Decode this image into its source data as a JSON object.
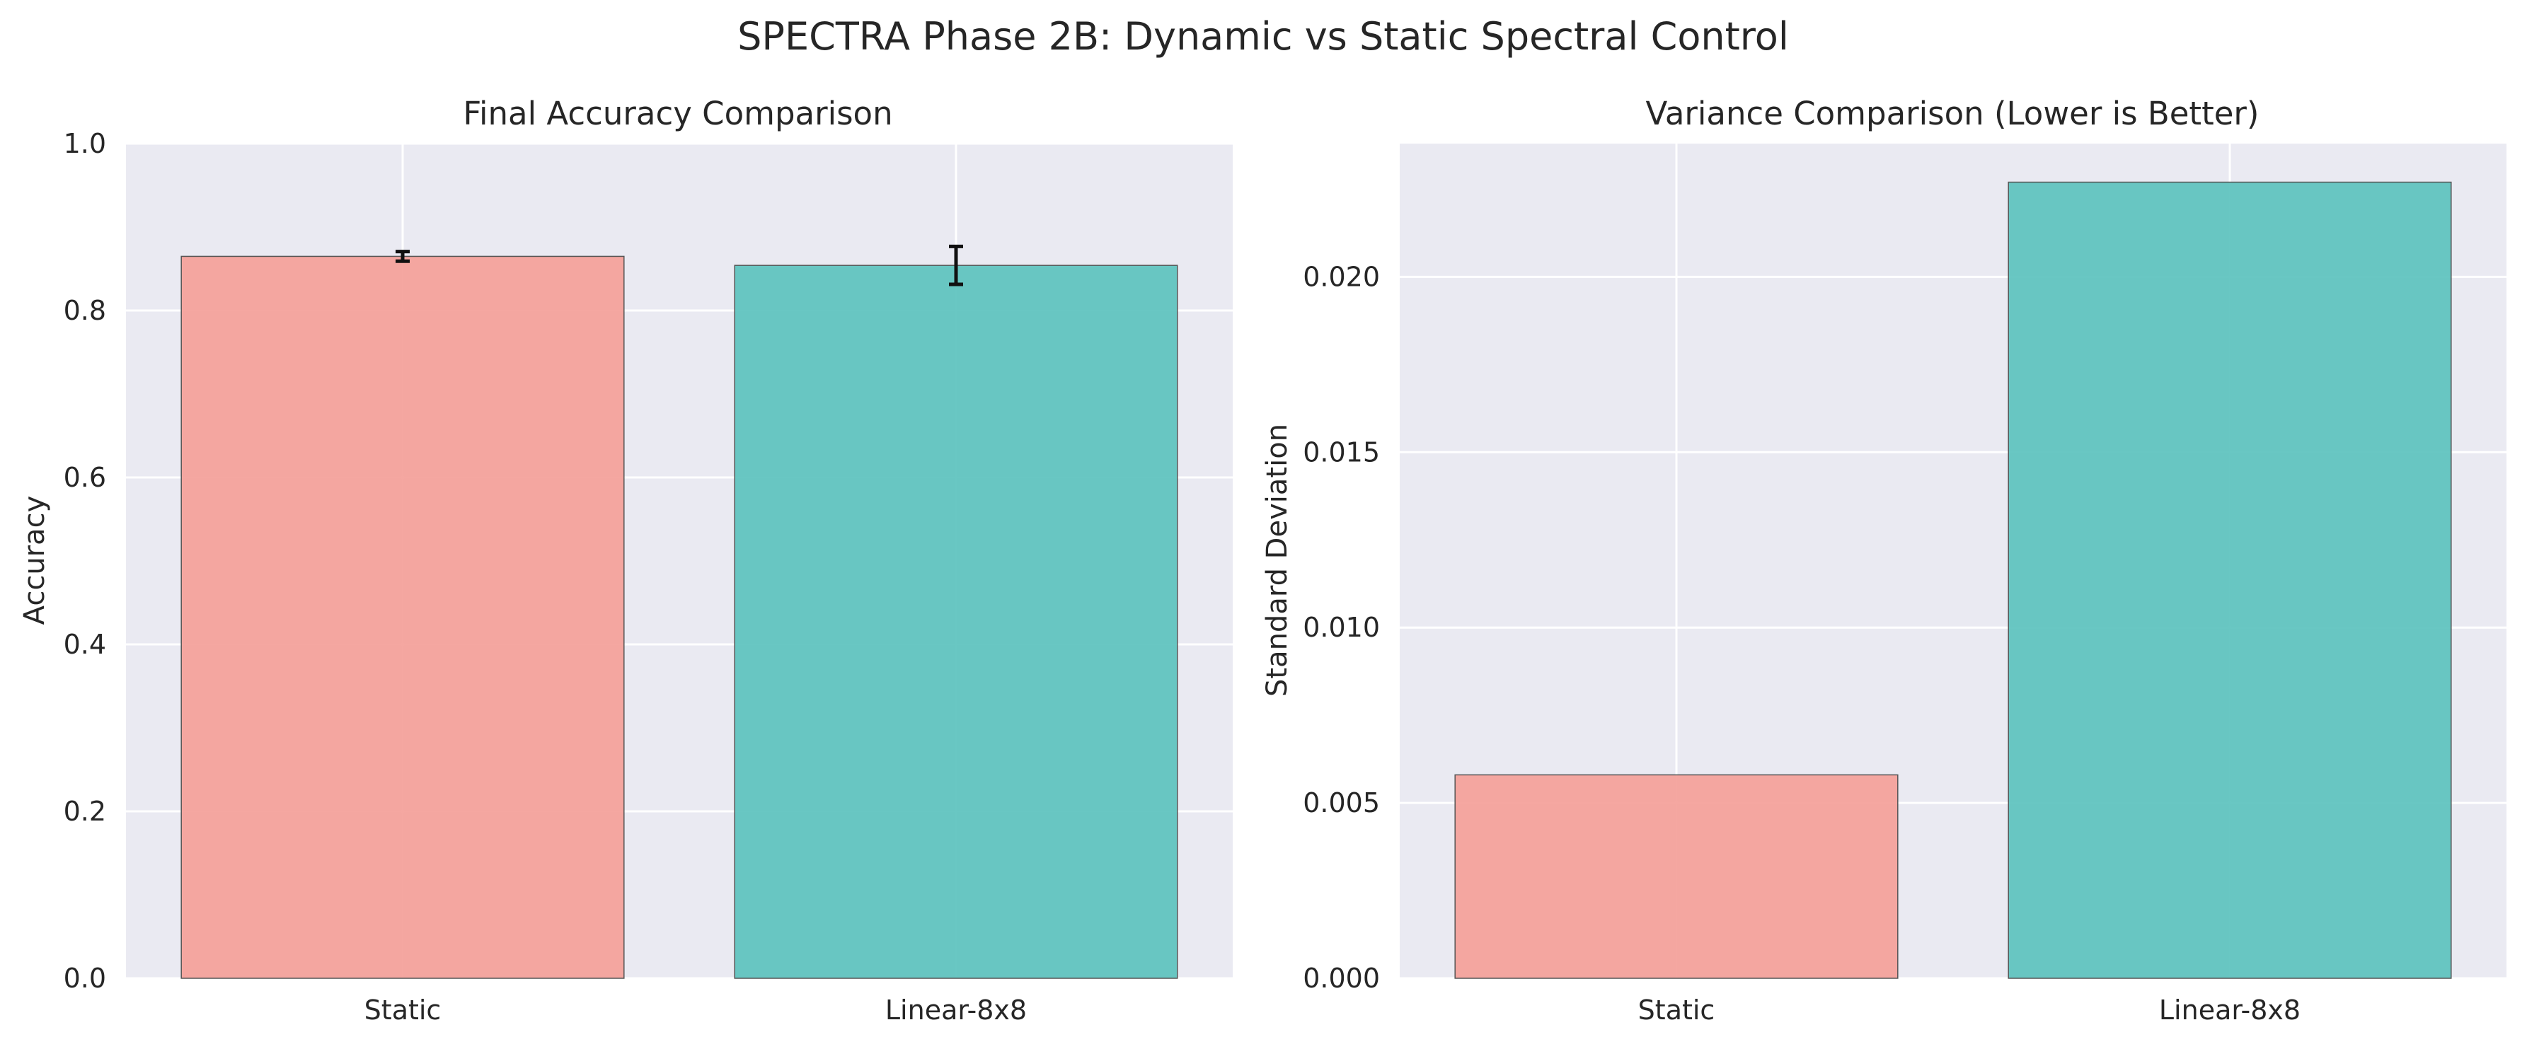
{
  "figure_title": "SPECTRA Phase 2B: Dynamic vs Static Spectral Control",
  "colors": {
    "axes_bg": "#EAEAF2",
    "grid": "#FFFFFF",
    "static_bar": "#F4A099",
    "linear_bar": "#5CC2BE",
    "bar_edge": "#555555",
    "error_bar": "#111111"
  },
  "chart_data": [
    {
      "type": "bar",
      "title": "Final Accuracy Comparison",
      "xlabel": "",
      "ylabel": "Accuracy",
      "ylim": [
        0,
        1.0
      ],
      "yticks": [
        0.0,
        0.2,
        0.4,
        0.6,
        0.8,
        1.0
      ],
      "ytick_labels": [
        "0.0",
        "0.2",
        "0.4",
        "0.6",
        "0.8",
        "1.0"
      ],
      "categories": [
        "Static",
        "Linear-8x8"
      ],
      "values": [
        0.8649,
        0.8541
      ],
      "error": [
        0.0058,
        0.0227
      ],
      "grid": true
    },
    {
      "type": "bar",
      "title": "Variance Comparison (Lower is Better)",
      "xlabel": "",
      "ylabel": "Standard Deviation",
      "ylim": [
        0,
        0.0238
      ],
      "yticks": [
        0.0,
        0.005,
        0.01,
        0.015,
        0.02
      ],
      "ytick_labels": [
        "0.000",
        "0.005",
        "0.010",
        "0.015",
        "0.020"
      ],
      "categories": [
        "Static",
        "Linear-8x8"
      ],
      "values": [
        0.0058,
        0.0227
      ],
      "grid": true
    }
  ]
}
